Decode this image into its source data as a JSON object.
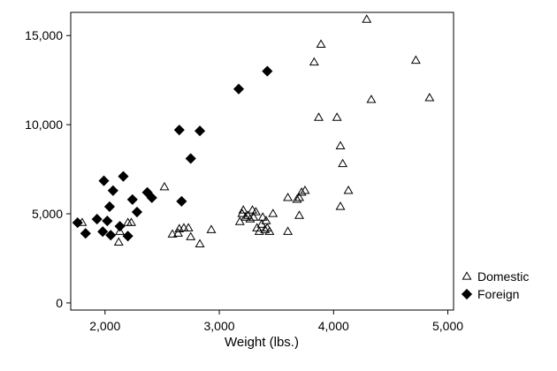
{
  "chart_data": {
    "type": "scatter",
    "xlabel": "Weight (lbs.)",
    "ylabel": "",
    "xlim": [
      1700,
      5050
    ],
    "ylim": [
      -400,
      16300
    ],
    "x_ticks": [
      2000,
      3000,
      4000,
      5000
    ],
    "x_tick_labels": [
      "2,000",
      "3,000",
      "4,000",
      "5,000"
    ],
    "y_ticks": [
      0,
      5000,
      10000,
      15000
    ],
    "y_tick_labels": [
      "0",
      "5,000",
      "10,000",
      "15,000"
    ],
    "grid": false,
    "legend_position": "bottom-right, outside plot",
    "series": [
      {
        "name": "Domestic",
        "marker": "hollow-triangle",
        "color": "#000000",
        "points": [
          [
            1800,
            4500
          ],
          [
            2120,
            3400
          ],
          [
            2130,
            4000
          ],
          [
            2200,
            4500
          ],
          [
            2230,
            4500
          ],
          [
            2520,
            6500
          ],
          [
            2590,
            3850
          ],
          [
            2640,
            3900
          ],
          [
            2650,
            4150
          ],
          [
            2690,
            4200
          ],
          [
            2730,
            4200
          ],
          [
            2750,
            3700
          ],
          [
            2830,
            3300
          ],
          [
            2930,
            4100
          ],
          [
            3180,
            4550
          ],
          [
            3200,
            5000
          ],
          [
            3210,
            5200
          ],
          [
            3230,
            4800
          ],
          [
            3250,
            4900
          ],
          [
            3270,
            4700
          ],
          [
            3290,
            5200
          ],
          [
            3300,
            4800
          ],
          [
            3320,
            5100
          ],
          [
            3330,
            4200
          ],
          [
            3350,
            4000
          ],
          [
            3370,
            4400
          ],
          [
            3380,
            4800
          ],
          [
            3400,
            4100
          ],
          [
            3410,
            4600
          ],
          [
            3420,
            4200
          ],
          [
            3440,
            4000
          ],
          [
            3470,
            5000
          ],
          [
            3600,
            4000
          ],
          [
            3600,
            5900
          ],
          [
            3680,
            5800
          ],
          [
            3700,
            4900
          ],
          [
            3700,
            5900
          ],
          [
            3720,
            6200
          ],
          [
            3750,
            6300
          ],
          [
            3830,
            13500
          ],
          [
            3870,
            10400
          ],
          [
            3890,
            14500
          ],
          [
            4030,
            10400
          ],
          [
            4060,
            8800
          ],
          [
            4060,
            5400
          ],
          [
            4080,
            7800
          ],
          [
            4130,
            6300
          ],
          [
            4290,
            15900
          ],
          [
            4330,
            11400
          ],
          [
            4720,
            13600
          ],
          [
            4840,
            11500
          ]
        ]
      },
      {
        "name": "Foreign",
        "marker": "filled-diamond",
        "color": "#000000",
        "points": [
          [
            1760,
            4500
          ],
          [
            1830,
            3900
          ],
          [
            1930,
            4700
          ],
          [
            1980,
            4000
          ],
          [
            1990,
            6850
          ],
          [
            2020,
            4600
          ],
          [
            2040,
            5400
          ],
          [
            2050,
            3800
          ],
          [
            2070,
            6300
          ],
          [
            2130,
            4300
          ],
          [
            2160,
            7100
          ],
          [
            2200,
            3750
          ],
          [
            2240,
            5800
          ],
          [
            2280,
            5100
          ],
          [
            2370,
            6200
          ],
          [
            2410,
            5900
          ],
          [
            2650,
            9700
          ],
          [
            2670,
            5700
          ],
          [
            2750,
            8100
          ],
          [
            2830,
            9650
          ],
          [
            3170,
            12000
          ],
          [
            3420,
            13000
          ]
        ]
      }
    ]
  }
}
